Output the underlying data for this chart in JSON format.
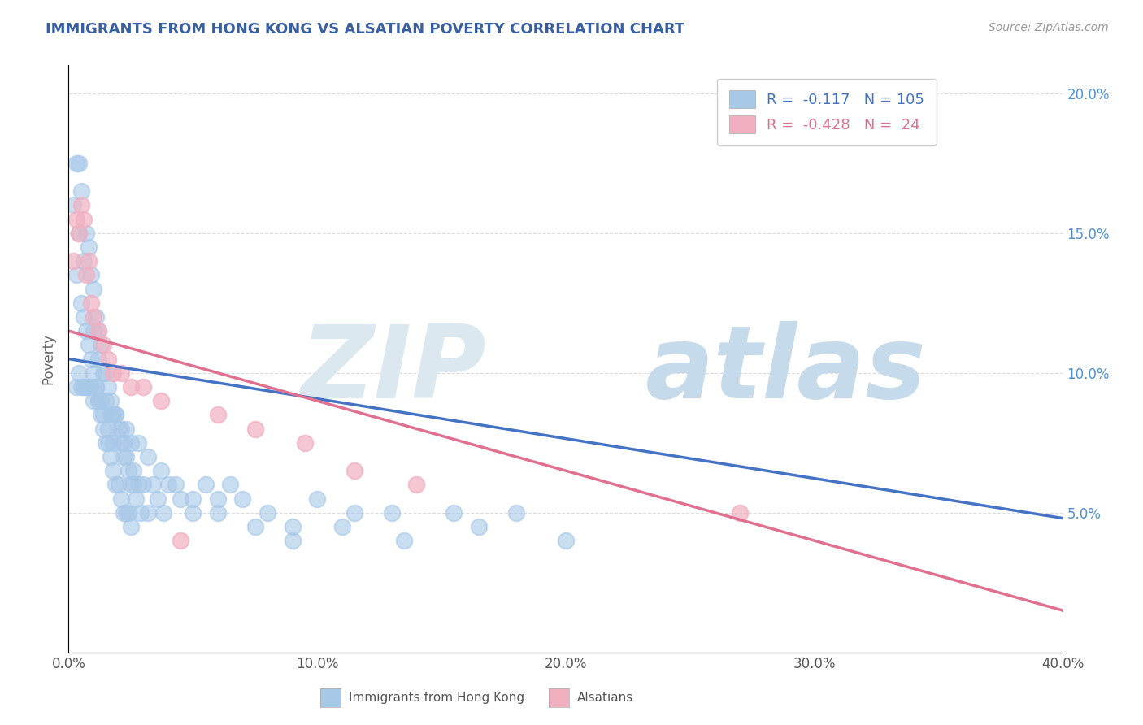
{
  "title": "IMMIGRANTS FROM HONG KONG VS ALSATIAN POVERTY CORRELATION CHART",
  "source": "Source: ZipAtlas.com",
  "ylabel": "Poverty",
  "xlim": [
    0.0,
    0.4
  ],
  "ylim": [
    0.0,
    0.21
  ],
  "color_blue": "#a8c8e8",
  "color_pink": "#f0b0c0",
  "color_blue_line": "#4472c4",
  "color_pink_line": "#e07090",
  "color_right_axis": "#5090d0",
  "watermark_zip_color": "#e0e8f0",
  "watermark_atlas_color": "#c8dce8",
  "blue_line_x": [
    0.0,
    0.4
  ],
  "blue_line_y": [
    0.105,
    0.048
  ],
  "pink_line_x": [
    0.0,
    0.4
  ],
  "pink_line_y": [
    0.115,
    0.015
  ],
  "grid_color": "#dddddd",
  "background_color": "#ffffff",
  "blue_scatter_x": [
    0.002,
    0.003,
    0.003,
    0.004,
    0.004,
    0.005,
    0.005,
    0.006,
    0.006,
    0.007,
    0.007,
    0.008,
    0.008,
    0.009,
    0.009,
    0.01,
    0.01,
    0.01,
    0.011,
    0.011,
    0.012,
    0.012,
    0.012,
    0.013,
    0.013,
    0.014,
    0.014,
    0.015,
    0.015,
    0.016,
    0.016,
    0.017,
    0.017,
    0.018,
    0.018,
    0.019,
    0.019,
    0.02,
    0.02,
    0.021,
    0.021,
    0.022,
    0.022,
    0.023,
    0.023,
    0.024,
    0.024,
    0.025,
    0.025,
    0.026,
    0.027,
    0.028,
    0.029,
    0.03,
    0.032,
    0.034,
    0.036,
    0.038,
    0.04,
    0.045,
    0.05,
    0.055,
    0.06,
    0.065,
    0.07,
    0.08,
    0.09,
    0.1,
    0.115,
    0.13,
    0.155,
    0.18,
    0.003,
    0.005,
    0.007,
    0.009,
    0.011,
    0.013,
    0.015,
    0.017,
    0.019,
    0.021,
    0.023,
    0.025,
    0.028,
    0.032,
    0.037,
    0.043,
    0.05,
    0.06,
    0.075,
    0.09,
    0.11,
    0.135,
    0.165,
    0.2,
    0.004,
    0.006,
    0.008,
    0.01,
    0.012,
    0.014,
    0.016,
    0.018,
    0.022,
    0.026
  ],
  "blue_scatter_y": [
    0.16,
    0.175,
    0.135,
    0.15,
    0.175,
    0.165,
    0.125,
    0.14,
    0.12,
    0.15,
    0.115,
    0.145,
    0.11,
    0.135,
    0.105,
    0.13,
    0.1,
    0.115,
    0.12,
    0.095,
    0.115,
    0.09,
    0.105,
    0.11,
    0.085,
    0.1,
    0.08,
    0.1,
    0.075,
    0.095,
    0.075,
    0.09,
    0.07,
    0.085,
    0.065,
    0.085,
    0.06,
    0.08,
    0.06,
    0.075,
    0.055,
    0.075,
    0.05,
    0.07,
    0.05,
    0.065,
    0.05,
    0.06,
    0.045,
    0.06,
    0.055,
    0.06,
    0.05,
    0.06,
    0.05,
    0.06,
    0.055,
    0.05,
    0.06,
    0.055,
    0.05,
    0.06,
    0.055,
    0.06,
    0.055,
    0.05,
    0.045,
    0.055,
    0.05,
    0.05,
    0.05,
    0.05,
    0.095,
    0.095,
    0.095,
    0.095,
    0.095,
    0.09,
    0.09,
    0.085,
    0.085,
    0.08,
    0.08,
    0.075,
    0.075,
    0.07,
    0.065,
    0.06,
    0.055,
    0.05,
    0.045,
    0.04,
    0.045,
    0.04,
    0.045,
    0.04,
    0.1,
    0.095,
    0.095,
    0.09,
    0.09,
    0.085,
    0.08,
    0.075,
    0.07,
    0.065
  ],
  "pink_scatter_x": [
    0.002,
    0.003,
    0.004,
    0.005,
    0.006,
    0.007,
    0.008,
    0.009,
    0.01,
    0.012,
    0.014,
    0.016,
    0.018,
    0.021,
    0.025,
    0.03,
    0.037,
    0.045,
    0.06,
    0.075,
    0.095,
    0.115,
    0.14,
    0.27
  ],
  "pink_scatter_y": [
    0.14,
    0.155,
    0.15,
    0.16,
    0.155,
    0.135,
    0.14,
    0.125,
    0.12,
    0.115,
    0.11,
    0.105,
    0.1,
    0.1,
    0.095,
    0.095,
    0.09,
    0.04,
    0.085,
    0.08,
    0.075,
    0.065,
    0.06,
    0.05
  ]
}
